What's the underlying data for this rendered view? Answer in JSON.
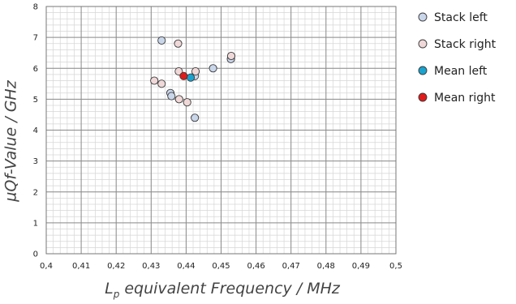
{
  "chart_data": {
    "type": "scatter",
    "title": "",
    "xlabel_main": "L",
    "xlabel_sub": "p",
    "xlabel_rest": " equivalent Frequency / MHz",
    "ylabel": "µQf-Value / GHz",
    "xlim": [
      0.4,
      0.5
    ],
    "ylim": [
      0,
      8
    ],
    "x_ticks": [
      {
        "value": 0.4,
        "label": "0,4"
      },
      {
        "value": 0.41,
        "label": "0,41"
      },
      {
        "value": 0.42,
        "label": "0,42"
      },
      {
        "value": 0.43,
        "label": "0,43"
      },
      {
        "value": 0.44,
        "label": "0,44"
      },
      {
        "value": 0.45,
        "label": "0,45"
      },
      {
        "value": 0.46,
        "label": "0,46"
      },
      {
        "value": 0.47,
        "label": "0,47"
      },
      {
        "value": 0.48,
        "label": "0,48"
      },
      {
        "value": 0.49,
        "label": "0,49"
      },
      {
        "value": 0.5,
        "label": "0,5"
      }
    ],
    "y_ticks": [
      {
        "value": 0,
        "label": "0"
      },
      {
        "value": 1,
        "label": "1"
      },
      {
        "value": 2,
        "label": "2"
      },
      {
        "value": 3,
        "label": "3"
      },
      {
        "value": 4,
        "label": "4"
      },
      {
        "value": 5,
        "label": "5"
      },
      {
        "value": 6,
        "label": "6"
      },
      {
        "value": 7,
        "label": "7"
      },
      {
        "value": 8,
        "label": "8"
      }
    ],
    "minor_grid_x_step": 0.002,
    "minor_grid_y_step": 0.2,
    "grid": true,
    "legend_position": "right",
    "series": [
      {
        "name": "Stack left",
        "color": "#c9d6ea",
        "points": [
          {
            "x": 0.433,
            "y": 6.9
          },
          {
            "x": 0.4355,
            "y": 5.2
          },
          {
            "x": 0.4358,
            "y": 5.1
          },
          {
            "x": 0.4425,
            "y": 4.4
          },
          {
            "x": 0.4425,
            "y": 5.75
          },
          {
            "x": 0.4477,
            "y": 6.0
          },
          {
            "x": 0.4528,
            "y": 6.3
          }
        ]
      },
      {
        "name": "Stack right",
        "color": "#f0d8d8",
        "points": [
          {
            "x": 0.4377,
            "y": 6.8
          },
          {
            "x": 0.4309,
            "y": 5.6
          },
          {
            "x": 0.433,
            "y": 5.5
          },
          {
            "x": 0.4379,
            "y": 5.9
          },
          {
            "x": 0.438,
            "y": 5.0
          },
          {
            "x": 0.4403,
            "y": 4.9
          },
          {
            "x": 0.4427,
            "y": 5.9
          },
          {
            "x": 0.4529,
            "y": 6.4
          }
        ]
      },
      {
        "name": "Mean left",
        "color": "#1aa3cf",
        "points": [
          {
            "x": 0.4413,
            "y": 5.7
          }
        ]
      },
      {
        "name": "Mean right",
        "color": "#e01b1b",
        "points": [
          {
            "x": 0.4393,
            "y": 5.75
          }
        ]
      }
    ]
  }
}
